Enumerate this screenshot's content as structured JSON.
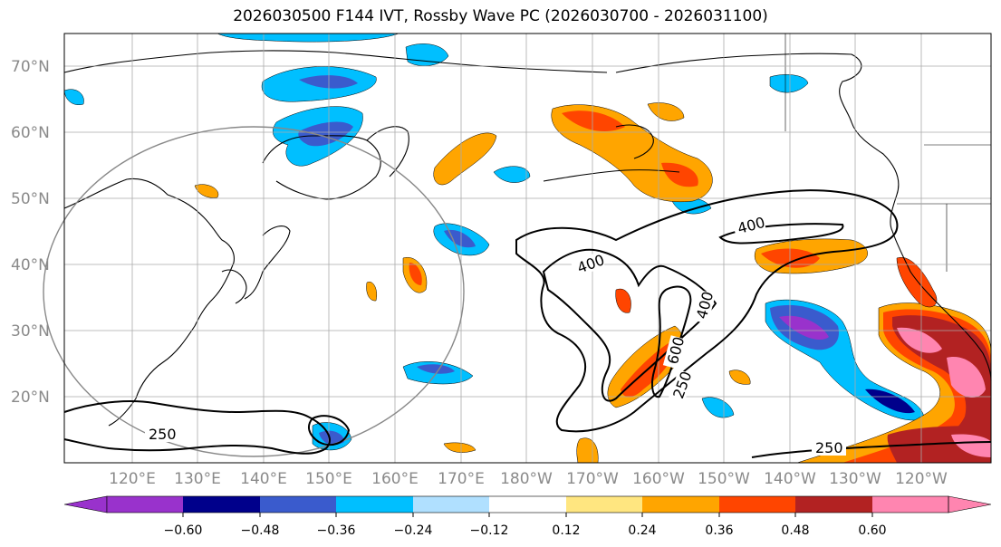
{
  "title": "2026030500 F144 IVT, Rossby Wave PC (2026030700 - 2026031100)",
  "lat_labels": [
    "70°N",
    "60°N",
    "50°N",
    "40°N",
    "30°N",
    "20°N"
  ],
  "lon_labels": [
    "120°E",
    "130°E",
    "140°E",
    "150°E",
    "160°E",
    "170°E",
    "180°W",
    "170°W",
    "160°W",
    "150°W",
    "140°W",
    "130°W",
    "120°W"
  ],
  "contour_labels": [
    "400",
    "400",
    "400",
    "600",
    "250",
    "250",
    "250"
  ],
  "colorbar": {
    "colors": [
      "#9932cc",
      "#00008b",
      "#3a5bcd",
      "#00bfff",
      "#b0e0ff",
      "#ffffff",
      "#ffe680",
      "#ffa500",
      "#ff4500",
      "#b22222",
      "#ff85b0"
    ],
    "tick_labels": [
      "−0.60",
      "−0.48",
      "−0.36",
      "−0.24",
      "−0.12",
      "0.12",
      "0.24",
      "0.36",
      "0.48",
      "0.60"
    ]
  }
}
